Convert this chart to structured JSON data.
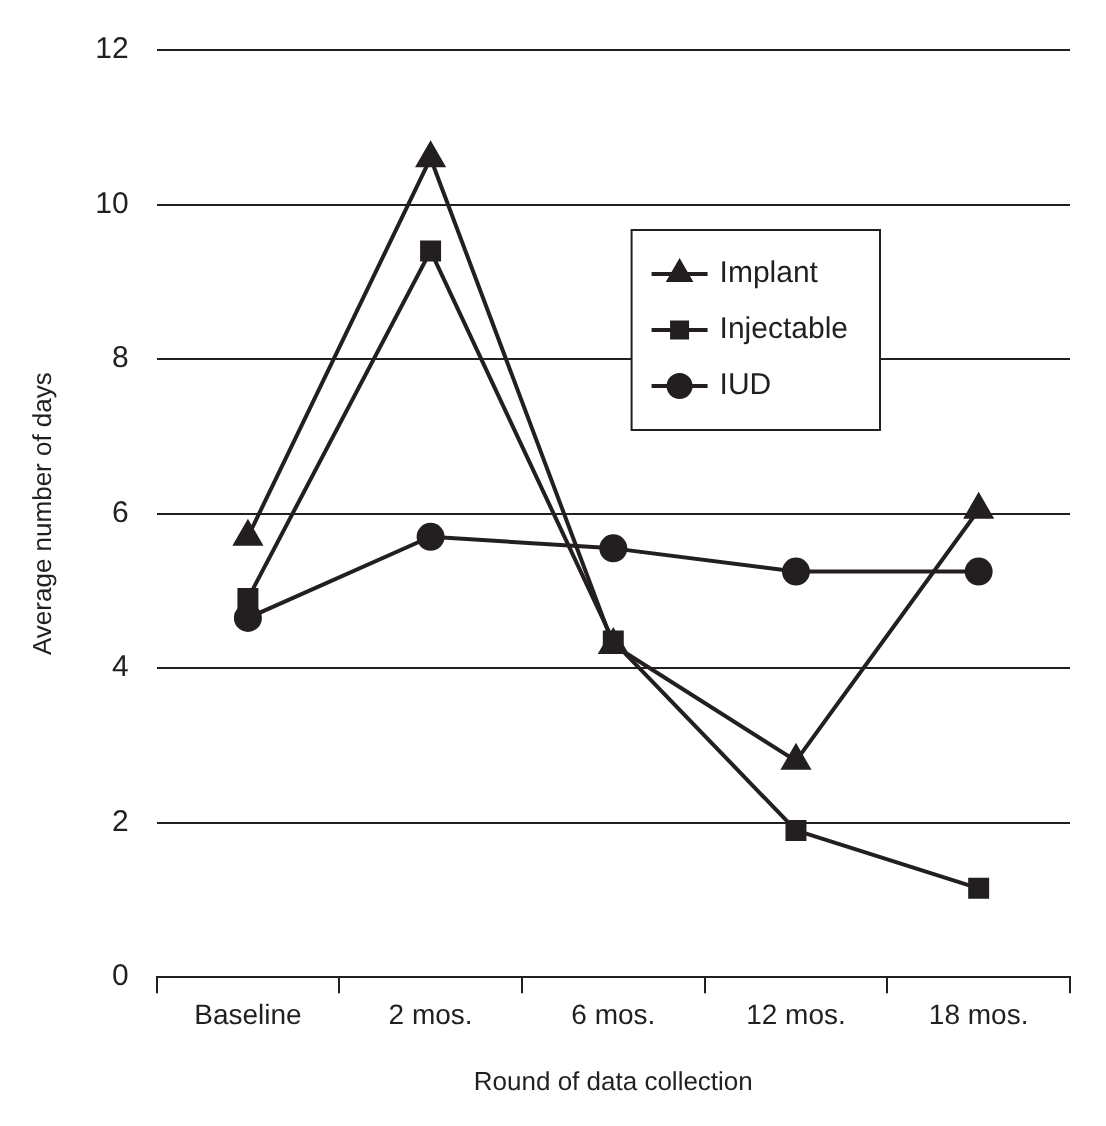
{
  "chart_data": {
    "type": "line",
    "xlabel": "Round of data collection",
    "ylabel": "Average number of days",
    "categories": [
      "Baseline",
      "2 mos.",
      "6 mos.",
      "12 mos.",
      "18 mos."
    ],
    "series": [
      {
        "name": "Implant",
        "color": "#231f20",
        "marker": "triangle",
        "values": [
          5.7,
          10.6,
          4.3,
          2.8,
          6.05
        ]
      },
      {
        "name": "Injectable",
        "color": "#231f20",
        "marker": "square",
        "values": [
          4.9,
          9.4,
          4.35,
          1.9,
          1.15
        ]
      },
      {
        "name": "IUD",
        "color": "#231f20",
        "marker": "circle",
        "values": [
          4.65,
          5.7,
          5.55,
          5.25,
          5.25
        ]
      }
    ],
    "ylim": [
      0,
      12
    ],
    "yticks": [
      0,
      2,
      4,
      6,
      8,
      10,
      12
    ],
    "grid": "y",
    "legend": "top right"
  }
}
